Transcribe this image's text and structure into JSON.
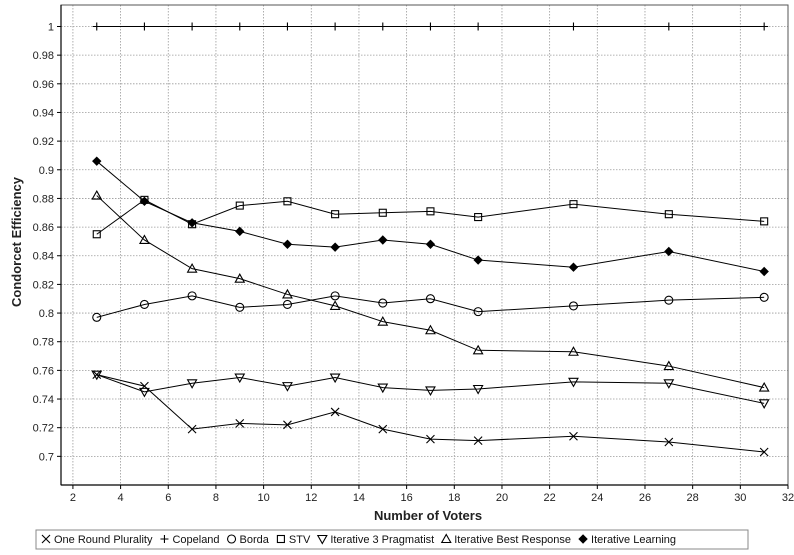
{
  "chart_data": {
    "type": "line",
    "title": "",
    "xlabel": "Number of Voters",
    "ylabel": "Condorcet Efficiency",
    "xlim": [
      1.5,
      32
    ],
    "ylim": [
      0.68,
      1.015
    ],
    "x_ticks": [
      2,
      4,
      6,
      8,
      10,
      12,
      14,
      16,
      18,
      20,
      22,
      24,
      26,
      28,
      30,
      32
    ],
    "x_tick_labels": [
      "2",
      "4",
      "6",
      "8",
      "10",
      "12",
      "14",
      "16",
      "18",
      "20",
      "22",
      "24",
      "26",
      "28",
      "30",
      "32"
    ],
    "y_ticks": [
      0.7,
      0.72,
      0.74,
      0.76,
      0.78,
      0.8,
      0.82,
      0.84,
      0.86,
      0.88,
      0.9,
      0.92,
      0.94,
      0.96,
      0.98,
      1
    ],
    "y_tick_labels": [
      "0.7",
      "0.72",
      "0.74",
      "0.76",
      "0.78",
      "0.8",
      "0.82",
      "0.84",
      "0.86",
      "0.88",
      "0.9",
      "0.92",
      "0.94",
      "0.96",
      "0.98",
      "1"
    ],
    "grid": true,
    "legend_position": "bottom",
    "x": [
      3,
      5,
      7,
      9,
      11,
      13,
      15,
      17,
      19,
      23,
      27,
      31
    ],
    "series": [
      {
        "name": "One Round Plurality",
        "marker": "x",
        "values": [
          0.757,
          0.749,
          0.719,
          0.723,
          0.722,
          0.731,
          0.719,
          0.712,
          0.711,
          0.714,
          0.71,
          0.703
        ]
      },
      {
        "name": "Copeland",
        "marker": "plus",
        "values": [
          1,
          1,
          1,
          1,
          1,
          1,
          1,
          1,
          1,
          1,
          1,
          1
        ]
      },
      {
        "name": "Borda",
        "marker": "circle",
        "values": [
          0.797,
          0.806,
          0.812,
          0.804,
          0.806,
          0.812,
          0.807,
          0.81,
          0.801,
          0.805,
          0.809,
          0.811
        ]
      },
      {
        "name": "STV",
        "marker": "square",
        "values": [
          0.855,
          0.879,
          0.862,
          0.875,
          0.878,
          0.869,
          0.87,
          0.871,
          0.867,
          0.876,
          0.869,
          0.864
        ]
      },
      {
        "name": "Iterative 3 Pragmatist",
        "marker": "triangle-down",
        "values": [
          0.757,
          0.745,
          0.751,
          0.755,
          0.749,
          0.755,
          0.748,
          0.746,
          0.747,
          0.752,
          0.751,
          0.737
        ]
      },
      {
        "name": "Iterative Best Response",
        "marker": "triangle-up",
        "values": [
          0.882,
          0.851,
          0.831,
          0.824,
          0.813,
          0.805,
          0.794,
          0.788,
          0.774,
          0.773,
          0.763,
          0.748
        ]
      },
      {
        "name": "Iterative Learning",
        "marker": "diamond",
        "values": [
          0.906,
          0.878,
          0.863,
          0.857,
          0.848,
          0.846,
          0.851,
          0.848,
          0.837,
          0.832,
          0.843,
          0.829
        ]
      }
    ]
  }
}
